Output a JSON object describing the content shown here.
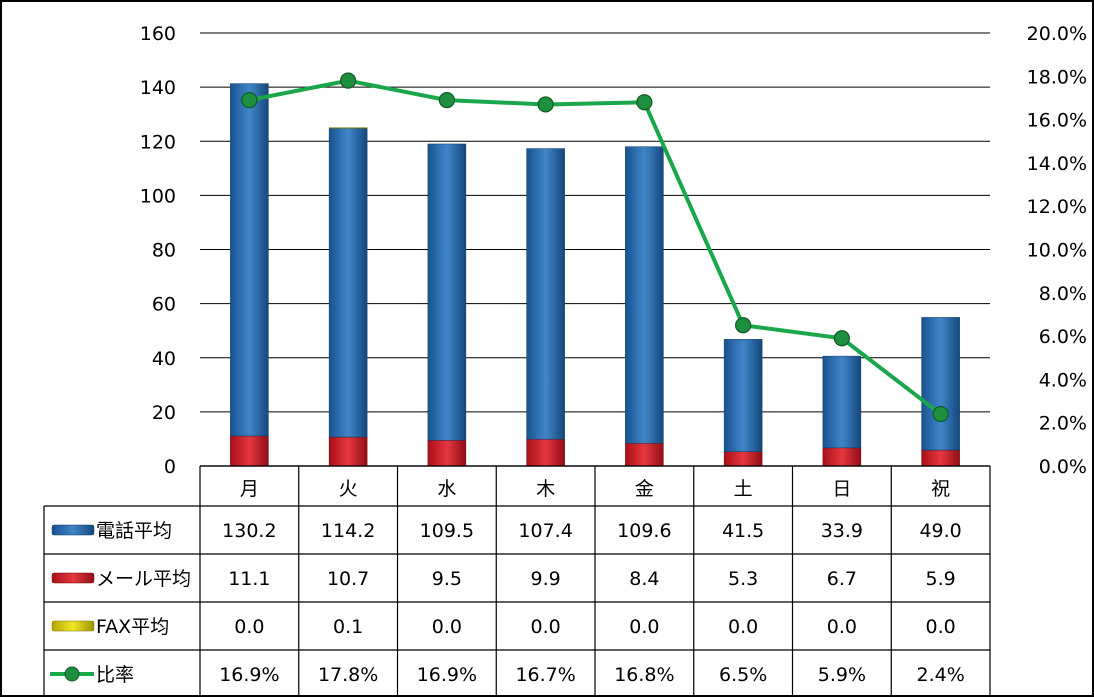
{
  "chart_data": {
    "type": "bar+line",
    "categories": [
      "月",
      "火",
      "水",
      "木",
      "金",
      "土",
      "日",
      "祝"
    ],
    "series": [
      {
        "name": "電話平均",
        "kind": "stacked-bar",
        "axis": "left",
        "color": "#1F6FBF",
        "values": [
          130.2,
          114.2,
          109.5,
          107.4,
          109.6,
          41.5,
          33.9,
          49.0
        ],
        "labels": [
          "130.2",
          "114.2",
          "109.5",
          "107.4",
          "109.6",
          "41.5",
          "33.9",
          "49.0"
        ]
      },
      {
        "name": "メール平均",
        "kind": "stacked-bar",
        "axis": "left",
        "color": "#E0141E",
        "values": [
          11.1,
          10.7,
          9.5,
          9.9,
          8.4,
          5.3,
          6.7,
          5.9
        ],
        "labels": [
          "11.1",
          "10.7",
          "9.5",
          "9.9",
          "8.4",
          "5.3",
          "6.7",
          "5.9"
        ]
      },
      {
        "name": "FAX平均",
        "kind": "stacked-bar",
        "axis": "left",
        "color": "#F0E000",
        "values": [
          0.0,
          0.1,
          0.0,
          0.0,
          0.0,
          0.0,
          0.0,
          0.0
        ],
        "labels": [
          "0.0",
          "0.1",
          "0.0",
          "0.0",
          "0.0",
          "0.0",
          "0.0",
          "0.0"
        ]
      },
      {
        "name": "比率",
        "kind": "line",
        "axis": "right",
        "color": "#1AA64A",
        "values": [
          16.9,
          17.8,
          16.9,
          16.7,
          16.8,
          6.5,
          5.9,
          2.4
        ],
        "labels": [
          "16.9%",
          "17.8%",
          "16.9%",
          "16.7%",
          "16.8%",
          "6.5%",
          "5.9%",
          "2.4%"
        ]
      }
    ],
    "y_left": {
      "min": 0,
      "max": 160,
      "ticks": [
        "0",
        "20",
        "40",
        "60",
        "80",
        "100",
        "120",
        "140",
        "160"
      ]
    },
    "y_right": {
      "min": 0,
      "max": 20,
      "unit": "%",
      "ticks": [
        "0.0%",
        "2.0%",
        "4.0%",
        "6.0%",
        "8.0%",
        "10.0%",
        "12.0%",
        "14.0%",
        "16.0%",
        "18.0%",
        "20.0%"
      ]
    },
    "grid": true,
    "legend": "data-table"
  }
}
